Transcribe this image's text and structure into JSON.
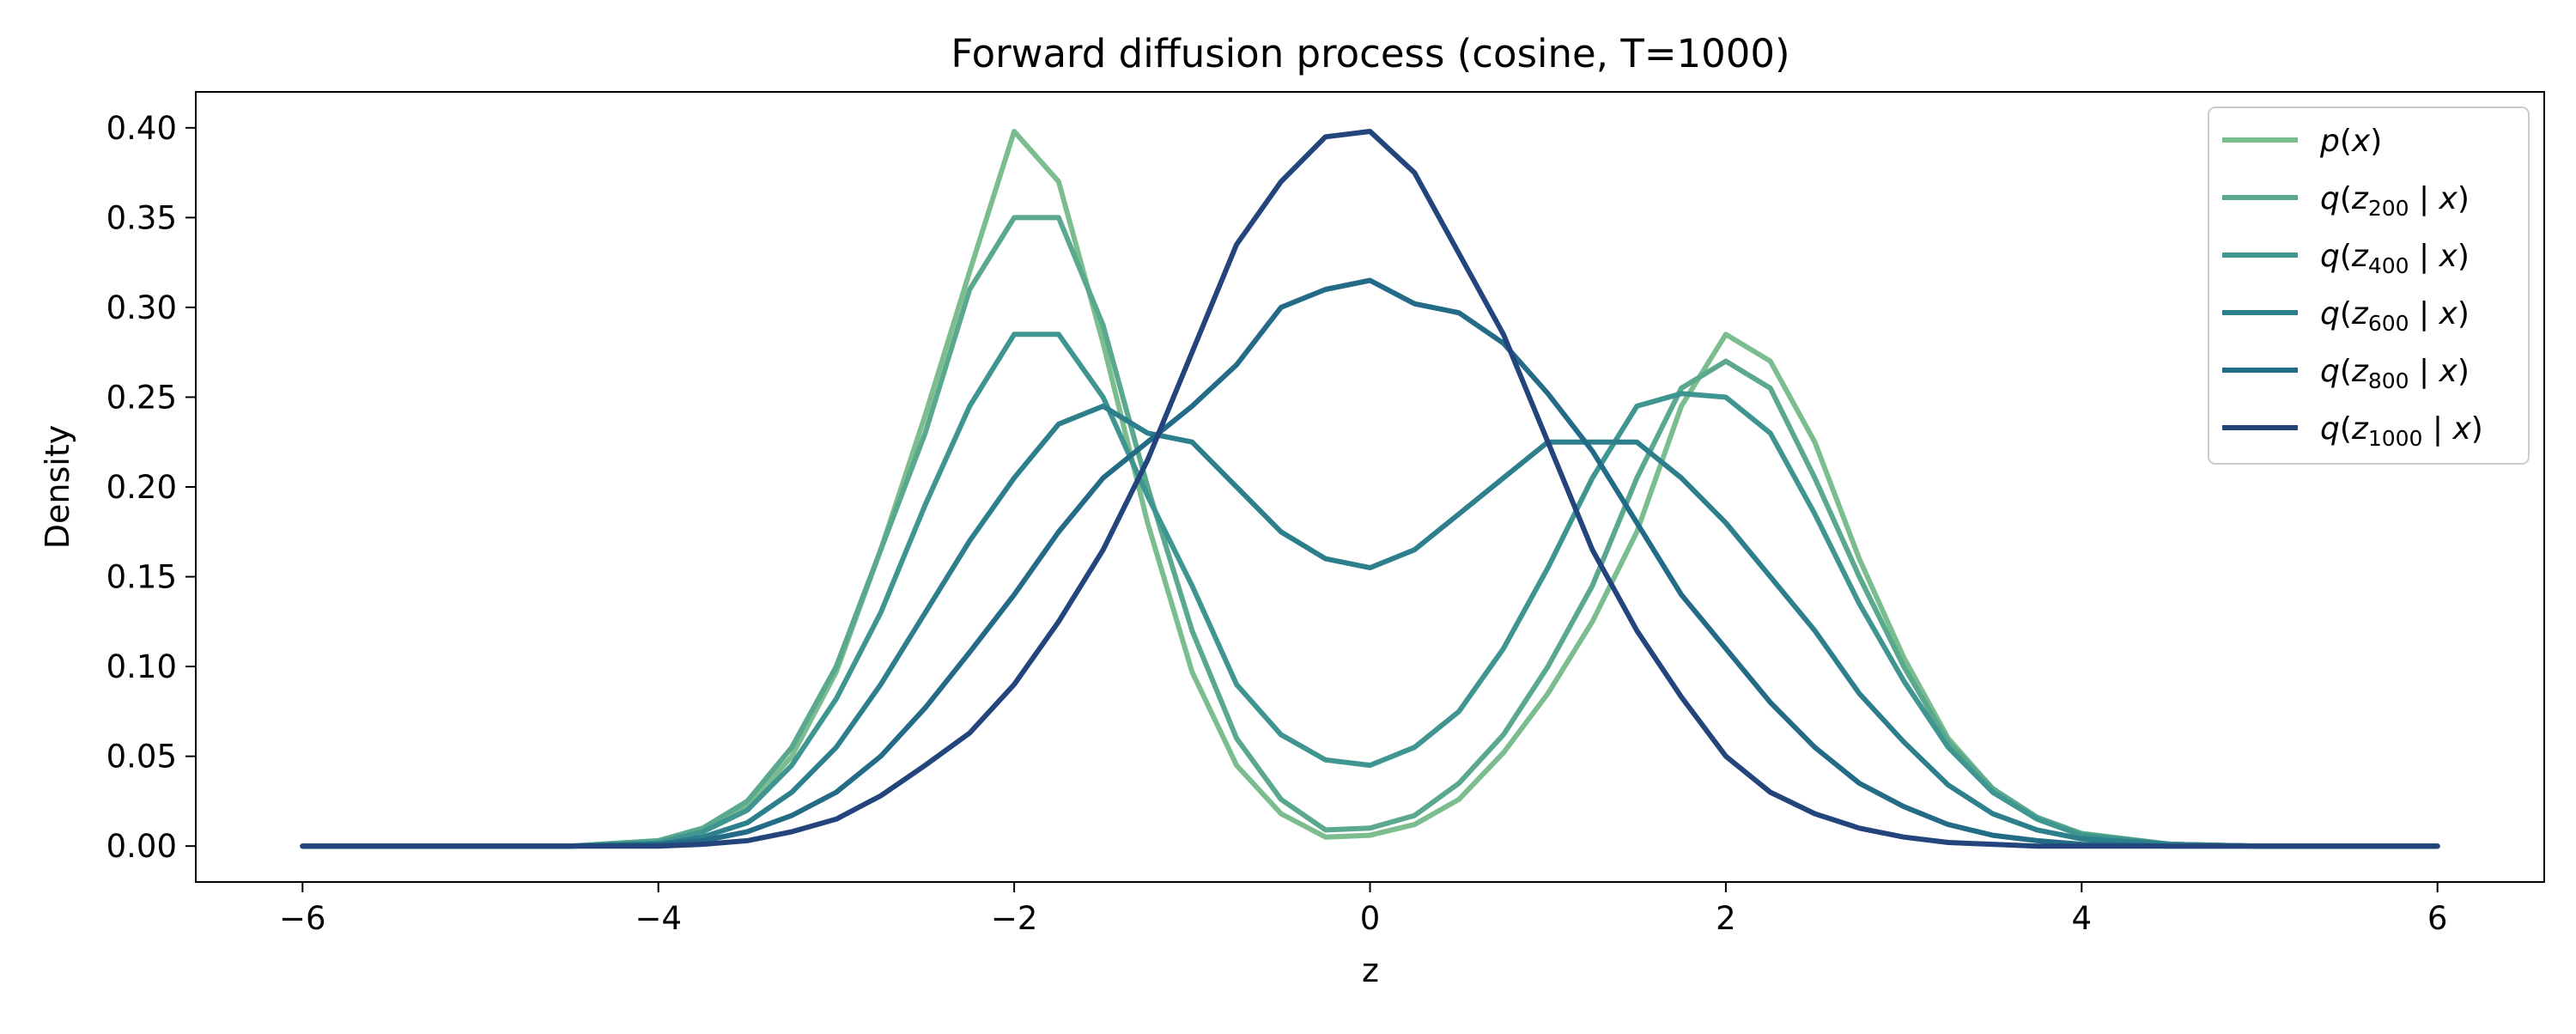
{
  "chart_data": {
    "type": "line",
    "title": "Forward diffusion process (cosine, T=1000)",
    "xlabel": "z",
    "ylabel": "Density",
    "xlim": [
      -6.6,
      6.6
    ],
    "ylim": [
      -0.02,
      0.42
    ],
    "xticks": [
      -6,
      -4,
      -2,
      0,
      2,
      4,
      6
    ],
    "xtick_labels": [
      "−6",
      "−4",
      "−2",
      "0",
      "2",
      "4",
      "6"
    ],
    "yticks": [
      0.0,
      0.05,
      0.1,
      0.15,
      0.2,
      0.25,
      0.3,
      0.35,
      0.4
    ],
    "ytick_labels": [
      "0.00",
      "0.05",
      "0.10",
      "0.15",
      "0.20",
      "0.25",
      "0.30",
      "0.35",
      "0.40"
    ],
    "grid": false,
    "legend_position": "top-right",
    "x": [
      -6.0,
      -5.5,
      -5.0,
      -4.5,
      -4.0,
      -3.75,
      -3.5,
      -3.25,
      -3.0,
      -2.75,
      -2.5,
      -2.25,
      -2.0,
      -1.75,
      -1.5,
      -1.25,
      -1.0,
      -0.75,
      -0.5,
      -0.25,
      0.0,
      0.25,
      0.5,
      0.75,
      1.0,
      1.25,
      1.5,
      1.75,
      2.0,
      2.25,
      2.5,
      2.75,
      3.0,
      3.25,
      3.5,
      3.75,
      4.0,
      4.5,
      5.0,
      5.5,
      6.0
    ],
    "series": [
      {
        "name_base": "p",
        "name_sub": "",
        "name_arg": "x",
        "color": "#7bbd8e",
        "values": [
          0.0,
          0.0,
          0.0,
          0.0,
          0.003,
          0.008,
          0.022,
          0.05,
          0.097,
          0.165,
          0.24,
          0.32,
          0.398,
          0.37,
          0.28,
          0.18,
          0.097,
          0.045,
          0.018,
          0.005,
          0.006,
          0.012,
          0.026,
          0.052,
          0.085,
          0.125,
          0.175,
          0.245,
          0.285,
          0.27,
          0.225,
          0.16,
          0.105,
          0.06,
          0.032,
          0.015,
          0.006,
          0.001,
          0.0,
          0.0,
          0.0
        ]
      },
      {
        "name_base": "q",
        "name_sub": "200",
        "name_arg": "x",
        "color": "#5aa88e",
        "values": [
          0.0,
          0.0,
          0.0,
          0.0,
          0.003,
          0.01,
          0.025,
          0.055,
          0.1,
          0.165,
          0.23,
          0.31,
          0.35,
          0.35,
          0.29,
          0.2,
          0.12,
          0.06,
          0.026,
          0.009,
          0.01,
          0.017,
          0.035,
          0.062,
          0.1,
          0.145,
          0.205,
          0.255,
          0.27,
          0.255,
          0.205,
          0.15,
          0.1,
          0.058,
          0.032,
          0.016,
          0.007,
          0.001,
          0.0,
          0.0,
          0.0
        ]
      },
      {
        "name_base": "q",
        "name_sub": "400",
        "name_arg": "x",
        "color": "#3f9590",
        "values": [
          0.0,
          0.0,
          0.0,
          0.0,
          0.002,
          0.008,
          0.02,
          0.045,
          0.082,
          0.13,
          0.19,
          0.245,
          0.285,
          0.285,
          0.25,
          0.195,
          0.145,
          0.09,
          0.062,
          0.048,
          0.045,
          0.055,
          0.075,
          0.11,
          0.155,
          0.205,
          0.245,
          0.252,
          0.25,
          0.23,
          0.185,
          0.135,
          0.092,
          0.055,
          0.03,
          0.015,
          0.006,
          0.001,
          0.0,
          0.0,
          0.0
        ]
      },
      {
        "name_base": "q",
        "name_sub": "600",
        "name_arg": "x",
        "color": "#2e7f8c",
        "values": [
          0.0,
          0.0,
          0.0,
          0.0,
          0.001,
          0.005,
          0.013,
          0.03,
          0.055,
          0.09,
          0.13,
          0.17,
          0.205,
          0.235,
          0.245,
          0.23,
          0.225,
          0.2,
          0.175,
          0.16,
          0.155,
          0.165,
          0.185,
          0.205,
          0.225,
          0.225,
          0.225,
          0.205,
          0.18,
          0.15,
          0.12,
          0.085,
          0.058,
          0.034,
          0.018,
          0.009,
          0.004,
          0.001,
          0.0,
          0.0,
          0.0
        ]
      },
      {
        "name_base": "q",
        "name_sub": "800",
        "name_arg": "x",
        "color": "#236b86",
        "values": [
          0.0,
          0.0,
          0.0,
          0.0,
          0.001,
          0.003,
          0.008,
          0.017,
          0.03,
          0.05,
          0.077,
          0.108,
          0.14,
          0.175,
          0.205,
          0.225,
          0.245,
          0.268,
          0.3,
          0.31,
          0.315,
          0.302,
          0.297,
          0.28,
          0.252,
          0.22,
          0.18,
          0.14,
          0.11,
          0.08,
          0.055,
          0.035,
          0.022,
          0.012,
          0.006,
          0.003,
          0.001,
          0.0,
          0.0,
          0.0,
          0.0
        ]
      },
      {
        "name_base": "q",
        "name_sub": "1000",
        "name_arg": "x",
        "color": "#24457c",
        "values": [
          0.0,
          0.0,
          0.0,
          0.0,
          0.0,
          0.001,
          0.003,
          0.008,
          0.015,
          0.028,
          0.045,
          0.063,
          0.09,
          0.125,
          0.165,
          0.215,
          0.275,
          0.335,
          0.37,
          0.395,
          0.398,
          0.375,
          0.33,
          0.285,
          0.225,
          0.165,
          0.12,
          0.083,
          0.05,
          0.03,
          0.018,
          0.01,
          0.005,
          0.002,
          0.001,
          0.0,
          0.0,
          0.0,
          0.0,
          0.0,
          0.0
        ]
      }
    ]
  }
}
